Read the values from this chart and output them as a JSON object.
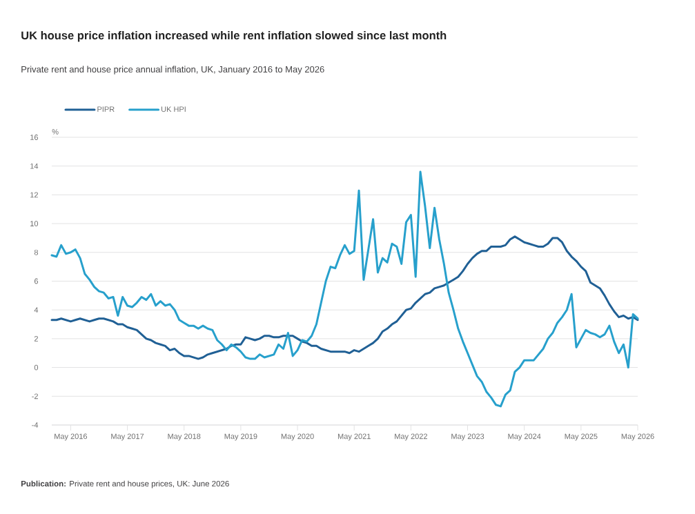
{
  "chart_data": {
    "type": "line",
    "title": "UK house price inflation increased while rent inflation slowed since last month",
    "subtitle": "Private rent and house price annual inflation, UK, January 2016 to May 2026",
    "ylabel": "%",
    "annotations": [
      "**Publication:** Private rent and house prices, UK: June 2026"
    ],
    "x": [
      "2016-01",
      "2016-02",
      "2016-03",
      "2016-04",
      "2016-05",
      "2016-06",
      "2016-07",
      "2016-08",
      "2016-09",
      "2016-10",
      "2016-11",
      "2016-12",
      "2017-01",
      "2017-02",
      "2017-03",
      "2017-04",
      "2017-05",
      "2017-06",
      "2017-07",
      "2017-08",
      "2017-09",
      "2017-10",
      "2017-11",
      "2017-12",
      "2018-01",
      "2018-02",
      "2018-03",
      "2018-04",
      "2018-05",
      "2018-06",
      "2018-07",
      "2018-08",
      "2018-09",
      "2018-10",
      "2018-11",
      "2018-12",
      "2019-01",
      "2019-02",
      "2019-03",
      "2019-04",
      "2019-05",
      "2019-06",
      "2019-07",
      "2019-08",
      "2019-09",
      "2019-10",
      "2019-11",
      "2019-12",
      "2020-01",
      "2020-02",
      "2020-03",
      "2020-04",
      "2020-05",
      "2020-06",
      "2020-07",
      "2020-08",
      "2020-09",
      "2020-10",
      "2020-11",
      "2020-12",
      "2021-01",
      "2021-02",
      "2021-03",
      "2021-04",
      "2021-05",
      "2021-06",
      "2021-07",
      "2021-08",
      "2021-09",
      "2021-10",
      "2021-11",
      "2021-12",
      "2022-01",
      "2022-02",
      "2022-03",
      "2022-04",
      "2022-05",
      "2022-06",
      "2022-07",
      "2022-08",
      "2022-09",
      "2022-10",
      "2022-11",
      "2022-12",
      "2023-01",
      "2023-02",
      "2023-03",
      "2023-04",
      "2023-05",
      "2023-06",
      "2023-07",
      "2023-08",
      "2023-09",
      "2023-10",
      "2023-11",
      "2023-12",
      "2024-01",
      "2024-02",
      "2024-03",
      "2024-04",
      "2024-05",
      "2024-06",
      "2024-07",
      "2024-08",
      "2024-09",
      "2024-10",
      "2024-11",
      "2024-12",
      "2025-01",
      "2025-02",
      "2025-03",
      "2025-04",
      "2025-05",
      "2025-06",
      "2025-07",
      "2025-08",
      "2025-09",
      "2025-10",
      "2025-11",
      "2025-12",
      "2026-01",
      "2026-02",
      "2026-03",
      "2026-04",
      "2026-05"
    ],
    "series": [
      {
        "name": "PIPR",
        "color": "#206095",
        "values": [
          3.3,
          3.3,
          3.4,
          3.3,
          3.2,
          3.3,
          3.4,
          3.3,
          3.2,
          3.3,
          3.4,
          3.4,
          3.3,
          3.2,
          3.0,
          3.0,
          2.8,
          2.7,
          2.6,
          2.3,
          2.0,
          1.9,
          1.7,
          1.6,
          1.5,
          1.2,
          1.3,
          1.0,
          0.8,
          0.8,
          0.7,
          0.6,
          0.7,
          0.9,
          1.0,
          1.1,
          1.2,
          1.3,
          1.5,
          1.6,
          1.6,
          2.1,
          2.0,
          1.9,
          2.0,
          2.2,
          2.2,
          2.1,
          2.1,
          2.2,
          2.2,
          2.2,
          2.0,
          1.8,
          1.7,
          1.5,
          1.5,
          1.3,
          1.2,
          1.1,
          1.1,
          1.1,
          1.1,
          1.0,
          1.2,
          1.1,
          1.3,
          1.5,
          1.7,
          2.0,
          2.5,
          2.7,
          3.0,
          3.2,
          3.6,
          4.0,
          4.1,
          4.5,
          4.8,
          5.1,
          5.2,
          5.5,
          5.6,
          5.7,
          5.9,
          6.1,
          6.3,
          6.7,
          7.2,
          7.6,
          7.9,
          8.1,
          8.1,
          8.4,
          8.4,
          8.4,
          8.5,
          8.9,
          9.1,
          8.9,
          8.7,
          8.6,
          8.5,
          8.4,
          8.4,
          8.6,
          9.0,
          9.0,
          8.7,
          8.1,
          7.7,
          7.4,
          7.0,
          6.7,
          5.9,
          5.7,
          5.5,
          5.0,
          4.4,
          3.9,
          3.5,
          3.6,
          3.4,
          3.5,
          3.3
        ]
      },
      {
        "name": "UK HPI",
        "color": "#27a0cc",
        "values": [
          7.8,
          7.7,
          8.5,
          7.9,
          8.0,
          8.2,
          7.6,
          6.5,
          6.1,
          5.6,
          5.3,
          5.2,
          4.8,
          4.9,
          3.6,
          4.9,
          4.3,
          4.2,
          4.5,
          4.9,
          4.7,
          5.1,
          4.3,
          4.6,
          4.3,
          4.4,
          4.0,
          3.3,
          3.1,
          2.9,
          2.9,
          2.7,
          2.9,
          2.7,
          2.6,
          1.9,
          1.6,
          1.2,
          1.6,
          1.4,
          1.1,
          0.7,
          0.6,
          0.6,
          0.9,
          0.7,
          0.8,
          0.9,
          1.6,
          1.3,
          2.4,
          0.8,
          1.2,
          1.9,
          1.8,
          2.2,
          3.0,
          4.5,
          6.0,
          7.0,
          6.9,
          7.8,
          8.5,
          7.9,
          8.1,
          12.3,
          6.1,
          8.2,
          10.3,
          6.6,
          7.6,
          7.3,
          8.6,
          8.4,
          7.2,
          10.1,
          10.6,
          6.3,
          13.6,
          11.2,
          8.3,
          11.1,
          8.9,
          7.2,
          5.2,
          4.0,
          2.7,
          1.8,
          1.0,
          0.2,
          -0.6,
          -1.0,
          -1.7,
          -2.1,
          -2.6,
          -2.7,
          -1.9,
          -1.6,
          -0.3,
          0.0,
          0.5,
          0.5,
          0.5,
          0.9,
          1.3,
          2.0,
          2.4,
          3.1,
          3.5,
          4.0,
          5.1,
          1.4,
          2.0,
          2.6,
          2.4,
          2.3,
          2.1,
          2.3,
          2.9,
          1.8,
          1.0,
          1.6,
          0.0,
          3.7,
          3.4
        ]
      }
    ],
    "xlim": [
      "2016-01",
      "2026-05"
    ],
    "xticks": [
      {
        "value": "2016-05",
        "label": "May 2016"
      },
      {
        "value": "2017-05",
        "label": "May 2017"
      },
      {
        "value": "2018-05",
        "label": "May 2018"
      },
      {
        "value": "2019-05",
        "label": "May 2019"
      },
      {
        "value": "2020-05",
        "label": "May 2020"
      },
      {
        "value": "2021-05",
        "label": "May 2021"
      },
      {
        "value": "2022-05",
        "label": "May 2022"
      },
      {
        "value": "2023-05",
        "label": "May 2023"
      },
      {
        "value": "2024-05",
        "label": "May 2024"
      },
      {
        "value": "2025-05",
        "label": "May 2025"
      },
      {
        "value": "2026-05",
        "label": "May 2026"
      }
    ],
    "ylim": [
      -4,
      16
    ],
    "yticks": [
      -4,
      -2,
      0,
      2,
      4,
      6,
      8,
      10,
      12,
      14,
      16
    ],
    "grid": "y",
    "legend": "top left",
    "marker": "none",
    "line_style": "solid"
  }
}
